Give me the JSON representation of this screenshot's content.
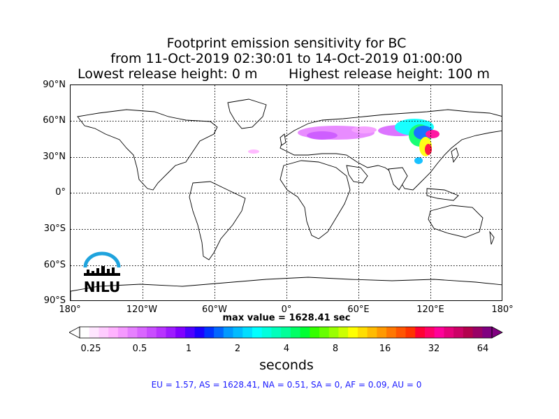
{
  "title": {
    "line1": "Footprint emission sensitivity for BC",
    "line2": "from 11-Oct-2019 02:30:01 to 14-Oct-2019 01:00:00",
    "lowest": "Lowest release height: 0 m",
    "highest": "Highest release height: 100 m"
  },
  "lat_labels": [
    "90°N",
    "60°N",
    "30°N",
    "0°",
    "30°S",
    "60°S",
    "90°S"
  ],
  "lon_labels": [
    "180°",
    "120°W",
    "60°W",
    "0°",
    "60°E",
    "120°E",
    "180°"
  ],
  "max_value": "max value = 1628.41 sec",
  "colorbar": {
    "ticks": [
      "0.25",
      "0.5",
      "1",
      "2",
      "4",
      "8",
      "16",
      "32",
      "64"
    ],
    "label": "seconds",
    "colors": [
      "#ffffff",
      "#ffe6ff",
      "#ffccff",
      "#ffb3ff",
      "#f599ff",
      "#e680ff",
      "#d966ff",
      "#c94dff",
      "#b833ff",
      "#9e1aff",
      "#8000ff",
      "#4d00ff",
      "#1a00ff",
      "#0033ff",
      "#0066ff",
      "#0099ff",
      "#00bbff",
      "#00ddff",
      "#00ffff",
      "#00ffdd",
      "#00ffbb",
      "#00ff99",
      "#00ff66",
      "#00ff33",
      "#33ff00",
      "#66ff00",
      "#99ff00",
      "#ccff00",
      "#ffff00",
      "#ffdd00",
      "#ffbb00",
      "#ff9900",
      "#ff7700",
      "#ff5500",
      "#ff3300",
      "#ff0033",
      "#ff0066",
      "#ff0099",
      "#e6007a",
      "#cc0066",
      "#b3004d",
      "#990066",
      "#800080"
    ]
  },
  "region_summary": "EU = 1.57,  AS = 1628.41,  NA = 0.51,  SA = 0,  AF = 0.09,  AU = 0",
  "logo_text": "NILU"
}
